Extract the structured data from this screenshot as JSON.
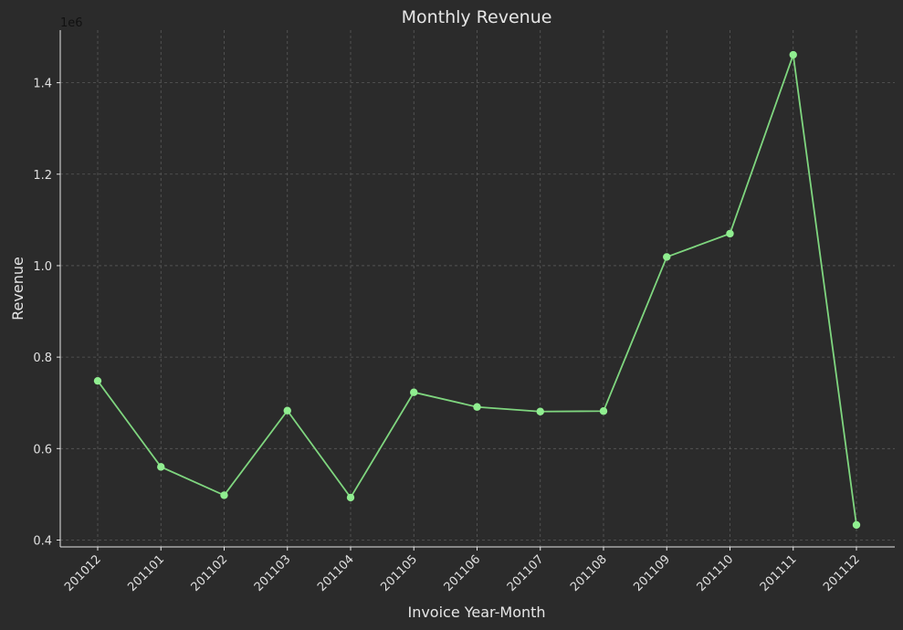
{
  "chart_data": {
    "type": "line",
    "title": "Monthly Revenue",
    "xlabel": "Invoice Year-Month",
    "ylabel": "Revenue",
    "y_offset_label": "1e6",
    "categories": [
      "201012",
      "201101",
      "201102",
      "201103",
      "201104",
      "201105",
      "201106",
      "201107",
      "201108",
      "201109",
      "201110",
      "201111",
      "201112"
    ],
    "series": [
      {
        "values": [
          748000,
          560000,
          498000,
          683000,
          493000,
          723000,
          691000,
          681000,
          682000,
          1019000,
          1070000,
          1461000,
          433000
        ]
      }
    ],
    "ylim": [
      0.385,
      1.515
    ],
    "y_scale": 1000000,
    "yticks": [
      0.4,
      0.6,
      0.8,
      1.0,
      1.2,
      1.4
    ],
    "ytick_labels": [
      "0.4",
      "0.6",
      "0.8",
      "1.0",
      "1.2",
      "1.4"
    ],
    "grid": true,
    "colors": {
      "background": "#2b2b2b",
      "line": "#7fd67f",
      "marker": "#90ee90"
    }
  }
}
